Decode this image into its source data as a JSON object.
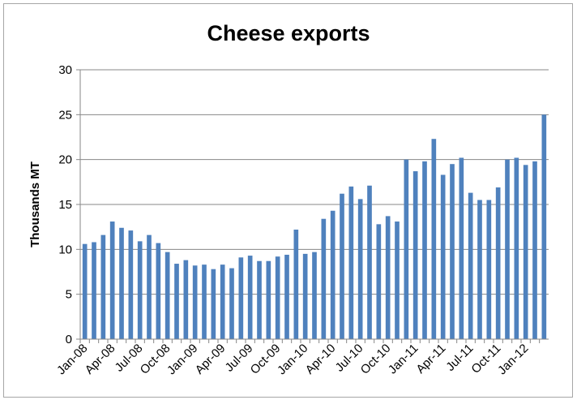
{
  "chart_data": {
    "type": "bar",
    "title": "Cheese exports",
    "xlabel": "",
    "ylabel": "Thousands MT",
    "ylim": [
      0,
      30
    ],
    "yticks": [
      0,
      5,
      10,
      15,
      20,
      25,
      30
    ],
    "grid": true,
    "legend": "none",
    "bar_color": "#4f81bd",
    "grid_color": "#878787",
    "categories": [
      "Jan-08",
      "Feb-08",
      "Mar-08",
      "Apr-08",
      "May-08",
      "Jun-08",
      "Jul-08",
      "Aug-08",
      "Sep-08",
      "Oct-08",
      "Nov-08",
      "Dec-08",
      "Jan-09",
      "Feb-09",
      "Mar-09",
      "Apr-09",
      "May-09",
      "Jun-09",
      "Jul-09",
      "Aug-09",
      "Sep-09",
      "Oct-09",
      "Nov-09",
      "Dec-09",
      "Jan-10",
      "Feb-10",
      "Mar-10",
      "Apr-10",
      "May-10",
      "Jun-10",
      "Jul-10",
      "Aug-10",
      "Sep-10",
      "Oct-10",
      "Nov-10",
      "Dec-10",
      "Jan-11",
      "Feb-11",
      "Mar-11",
      "Apr-11",
      "May-11",
      "Jun-11",
      "Jul-11",
      "Aug-11",
      "Sep-11",
      "Oct-11",
      "Nov-11",
      "Dec-11",
      "Jan-12",
      "Feb-12",
      "Mar-12"
    ],
    "xtick_labels": [
      "Jan-08",
      "Apr-08",
      "Jul-08",
      "Oct-08",
      "Jan-09",
      "Apr-09",
      "Jul-09",
      "Oct-09",
      "Jan-10",
      "Apr-10",
      "Jul-10",
      "Oct-10",
      "Jan-11",
      "Apr-11",
      "Jul-11",
      "Oct-11",
      "Jan-12"
    ],
    "values": [
      10.6,
      10.8,
      11.6,
      13.1,
      12.4,
      12.1,
      10.9,
      11.6,
      10.7,
      9.7,
      8.4,
      8.8,
      8.2,
      8.3,
      7.8,
      8.3,
      7.9,
      9.1,
      9.3,
      8.7,
      8.7,
      9.2,
      9.4,
      12.2,
      9.5,
      9.7,
      13.4,
      14.3,
      16.2,
      17.0,
      15.6,
      17.1,
      12.8,
      13.7,
      13.1,
      20.0,
      18.7,
      19.8,
      22.3,
      18.3,
      19.5,
      20.2,
      16.3,
      15.5,
      15.5,
      16.9,
      20.0,
      20.2,
      19.4,
      19.8,
      25.0
    ]
  }
}
